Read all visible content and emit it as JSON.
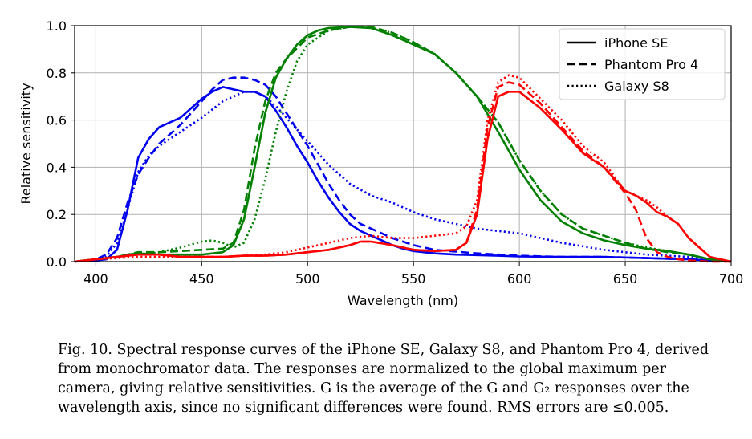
{
  "chart_data": {
    "type": "line",
    "xlabel": "Wavelength (nm)",
    "ylabel": "Relative sensitivity",
    "xlim": [
      390,
      700
    ],
    "ylim": [
      0.0,
      1.0
    ],
    "xticks": [
      "400",
      "450",
      "500",
      "550",
      "600",
      "650",
      "700"
    ],
    "yticks": [
      "0.0",
      "0.2",
      "0.4",
      "0.6",
      "0.8",
      "1.0"
    ],
    "grid": true,
    "legend_position": "top-right",
    "colors": {
      "blue": "#0000ee",
      "green": "#008000",
      "red": "#ff0000"
    },
    "legend": [
      {
        "label": "iPhone SE",
        "style": "solid"
      },
      {
        "label": "Phantom Pro 4",
        "style": "dashed"
      },
      {
        "label": "Galaxy S8",
        "style": "dotted"
      }
    ],
    "series": [
      {
        "camera": "iPhone SE",
        "channel": "blue",
        "color": "#0000ee",
        "style": "solid",
        "x": [
          390,
          400,
          405,
          410,
          415,
          420,
          425,
          430,
          435,
          440,
          445,
          450,
          455,
          460,
          465,
          470,
          475,
          480,
          485,
          490,
          495,
          500,
          505,
          510,
          515,
          520,
          525,
          530,
          535,
          540,
          545,
          550,
          560,
          570,
          580,
          590,
          600,
          620,
          640,
          660,
          680,
          690,
          700
        ],
        "y": [
          0.0,
          0.005,
          0.01,
          0.05,
          0.22,
          0.44,
          0.52,
          0.57,
          0.59,
          0.61,
          0.65,
          0.69,
          0.72,
          0.74,
          0.73,
          0.72,
          0.72,
          0.7,
          0.64,
          0.57,
          0.49,
          0.42,
          0.34,
          0.27,
          0.21,
          0.16,
          0.13,
          0.11,
          0.09,
          0.07,
          0.055,
          0.045,
          0.035,
          0.03,
          0.028,
          0.025,
          0.022,
          0.02,
          0.02,
          0.015,
          0.01,
          0.005,
          0.0
        ]
      },
      {
        "camera": "Phantom Pro 4",
        "channel": "blue",
        "color": "#0000ee",
        "style": "dashed",
        "x": [
          390,
          400,
          405,
          410,
          415,
          420,
          425,
          430,
          440,
          450,
          455,
          460,
          465,
          470,
          475,
          480,
          485,
          490,
          495,
          500,
          505,
          510,
          515,
          520,
          525,
          530,
          540,
          550,
          560,
          580,
          600,
          620,
          640,
          660,
          680,
          700
        ],
        "y": [
          0.0,
          0.01,
          0.03,
          0.1,
          0.25,
          0.37,
          0.44,
          0.5,
          0.58,
          0.68,
          0.73,
          0.77,
          0.78,
          0.78,
          0.77,
          0.75,
          0.7,
          0.63,
          0.56,
          0.49,
          0.41,
          0.33,
          0.26,
          0.2,
          0.16,
          0.14,
          0.1,
          0.07,
          0.05,
          0.035,
          0.025,
          0.02,
          0.02,
          0.015,
          0.01,
          0.0
        ]
      },
      {
        "camera": "Galaxy S8",
        "channel": "blue",
        "color": "#0000ee",
        "style": "dotted",
        "x": [
          390,
          400,
          405,
          410,
          415,
          420,
          425,
          430,
          440,
          450,
          460,
          470,
          475,
          480,
          485,
          490,
          495,
          500,
          505,
          510,
          520,
          530,
          540,
          550,
          560,
          570,
          580,
          590,
          600,
          610,
          620,
          640,
          660,
          680,
          700
        ],
        "y": [
          0.0,
          0.01,
          0.02,
          0.08,
          0.22,
          0.38,
          0.45,
          0.49,
          0.55,
          0.61,
          0.68,
          0.72,
          0.72,
          0.7,
          0.66,
          0.61,
          0.56,
          0.51,
          0.46,
          0.41,
          0.33,
          0.28,
          0.25,
          0.21,
          0.18,
          0.16,
          0.14,
          0.13,
          0.12,
          0.1,
          0.08,
          0.05,
          0.03,
          0.02,
          0.0
        ]
      },
      {
        "camera": "iPhone SE",
        "channel": "green",
        "color": "#008000",
        "style": "solid",
        "x": [
          390,
          400,
          410,
          415,
          420,
          430,
          440,
          450,
          460,
          465,
          470,
          475,
          480,
          485,
          490,
          495,
          500,
          505,
          510,
          520,
          530,
          540,
          550,
          560,
          570,
          580,
          590,
          600,
          610,
          620,
          630,
          640,
          650,
          660,
          670,
          680,
          690,
          700
        ],
        "y": [
          0.0,
          0.01,
          0.02,
          0.03,
          0.035,
          0.03,
          0.03,
          0.03,
          0.04,
          0.07,
          0.18,
          0.4,
          0.63,
          0.78,
          0.86,
          0.92,
          0.96,
          0.98,
          0.99,
          0.995,
          0.99,
          0.96,
          0.92,
          0.88,
          0.8,
          0.7,
          0.55,
          0.39,
          0.26,
          0.17,
          0.12,
          0.09,
          0.07,
          0.055,
          0.045,
          0.03,
          0.01,
          0.0
        ]
      },
      {
        "camera": "Phantom Pro 4",
        "channel": "green",
        "color": "#008000",
        "style": "dashed",
        "x": [
          390,
          400,
          410,
          420,
          430,
          440,
          450,
          460,
          465,
          470,
          475,
          480,
          485,
          490,
          500,
          510,
          520,
          530,
          540,
          550,
          560,
          570,
          580,
          590,
          600,
          610,
          620,
          630,
          640,
          650,
          660,
          670,
          680,
          690,
          700
        ],
        "y": [
          0.0,
          0.01,
          0.02,
          0.04,
          0.04,
          0.045,
          0.05,
          0.055,
          0.08,
          0.22,
          0.48,
          0.68,
          0.8,
          0.86,
          0.95,
          0.98,
          0.995,
          0.995,
          0.97,
          0.93,
          0.88,
          0.8,
          0.7,
          0.59,
          0.43,
          0.3,
          0.2,
          0.14,
          0.11,
          0.08,
          0.055,
          0.04,
          0.03,
          0.01,
          0.0
        ]
      },
      {
        "camera": "Galaxy S8",
        "channel": "green",
        "color": "#008000",
        "style": "dotted",
        "x": [
          390,
          400,
          410,
          420,
          430,
          440,
          450,
          455,
          460,
          465,
          470,
          475,
          480,
          485,
          490,
          495,
          500,
          510,
          520,
          530,
          540,
          550,
          560,
          570,
          580,
          590,
          600,
          610,
          620,
          630,
          640,
          650,
          660,
          670,
          680,
          690,
          700
        ],
        "y": [
          0.0,
          0.01,
          0.02,
          0.03,
          0.04,
          0.06,
          0.085,
          0.09,
          0.08,
          0.06,
          0.08,
          0.18,
          0.35,
          0.55,
          0.72,
          0.85,
          0.92,
          0.98,
          0.995,
          0.99,
          0.97,
          0.93,
          0.88,
          0.8,
          0.7,
          0.59,
          0.43,
          0.3,
          0.2,
          0.14,
          0.11,
          0.08,
          0.06,
          0.045,
          0.03,
          0.01,
          0.0
        ]
      },
      {
        "camera": "iPhone SE",
        "channel": "red",
        "color": "#ff0000",
        "style": "solid",
        "x": [
          390,
          400,
          410,
          420,
          430,
          440,
          450,
          460,
          470,
          480,
          490,
          500,
          510,
          520,
          525,
          530,
          540,
          550,
          560,
          570,
          575,
          580,
          585,
          590,
          595,
          600,
          610,
          620,
          630,
          640,
          650,
          655,
          660,
          665,
          670,
          675,
          680,
          690,
          700
        ],
        "y": [
          0.0,
          0.01,
          0.02,
          0.03,
          0.03,
          0.02,
          0.02,
          0.02,
          0.025,
          0.025,
          0.03,
          0.04,
          0.05,
          0.07,
          0.085,
          0.085,
          0.07,
          0.05,
          0.045,
          0.05,
          0.08,
          0.2,
          0.52,
          0.7,
          0.72,
          0.72,
          0.65,
          0.56,
          0.46,
          0.4,
          0.3,
          0.28,
          0.25,
          0.21,
          0.19,
          0.16,
          0.1,
          0.02,
          0.0
        ]
      },
      {
        "camera": "Phantom Pro 4",
        "channel": "red",
        "color": "#ff0000",
        "style": "dashed",
        "x": [
          390,
          400,
          410,
          420,
          430,
          440,
          450,
          460,
          470,
          480,
          490,
          500,
          510,
          520,
          525,
          530,
          540,
          550,
          560,
          570,
          575,
          580,
          585,
          590,
          595,
          600,
          610,
          620,
          630,
          640,
          650,
          655,
          660,
          665,
          670,
          675,
          680,
          690,
          700
        ],
        "y": [
          0.0,
          0.01,
          0.02,
          0.03,
          0.03,
          0.02,
          0.02,
          0.02,
          0.025,
          0.025,
          0.03,
          0.04,
          0.05,
          0.07,
          0.085,
          0.085,
          0.07,
          0.05,
          0.045,
          0.05,
          0.08,
          0.22,
          0.57,
          0.74,
          0.76,
          0.75,
          0.67,
          0.57,
          0.47,
          0.4,
          0.29,
          0.22,
          0.1,
          0.04,
          0.02,
          0.01,
          0.005,
          0.0,
          0.0
        ]
      },
      {
        "camera": "Galaxy S8",
        "channel": "red",
        "color": "#ff0000",
        "style": "dotted",
        "x": [
          390,
          400,
          410,
          420,
          430,
          440,
          450,
          460,
          470,
          480,
          490,
          500,
          510,
          520,
          530,
          540,
          550,
          560,
          570,
          575,
          580,
          585,
          590,
          595,
          600,
          610,
          620,
          630,
          640,
          650,
          660,
          665,
          670,
          675,
          680,
          690,
          700
        ],
        "y": [
          0.0,
          0.01,
          0.015,
          0.02,
          0.02,
          0.02,
          0.02,
          0.02,
          0.025,
          0.03,
          0.04,
          0.06,
          0.08,
          0.1,
          0.11,
          0.1,
          0.1,
          0.11,
          0.12,
          0.15,
          0.26,
          0.6,
          0.76,
          0.79,
          0.78,
          0.69,
          0.6,
          0.49,
          0.42,
          0.3,
          0.26,
          0.23,
          0.19,
          0.16,
          0.1,
          0.02,
          0.0
        ]
      }
    ]
  },
  "caption": "Fig. 10. Spectral response curves of the iPhone SE, Galaxy S8, and Phantom Pro 4, derived from monochromator data. The responses are normalized to the global maximum per camera, giving relative sensitivities. G is the average of the G and G₂ responses over the wavelength axis, since no significant differences were found. RMS errors are ≤0.005."
}
